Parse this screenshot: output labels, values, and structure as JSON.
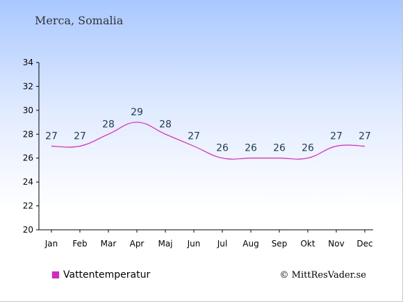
{
  "chart_data": {
    "type": "line",
    "title": "Merca, Somalia",
    "categories": [
      "Jan",
      "Feb",
      "Mar",
      "Apr",
      "Maj",
      "Jun",
      "Jul",
      "Aug",
      "Sep",
      "Okt",
      "Nov",
      "Dec"
    ],
    "series": [
      {
        "name": "Vattentemperatur",
        "values": [
          27,
          27,
          28,
          29,
          28,
          27,
          26,
          26,
          26,
          26,
          27,
          27
        ],
        "color": "#dd22cc"
      }
    ],
    "ylim": [
      20,
      34
    ],
    "yticks": [
      20,
      22,
      24,
      26,
      28,
      30,
      32,
      34
    ],
    "grid": false,
    "legend_position": "bottom-left"
  },
  "credit": "© MittResVader.se"
}
